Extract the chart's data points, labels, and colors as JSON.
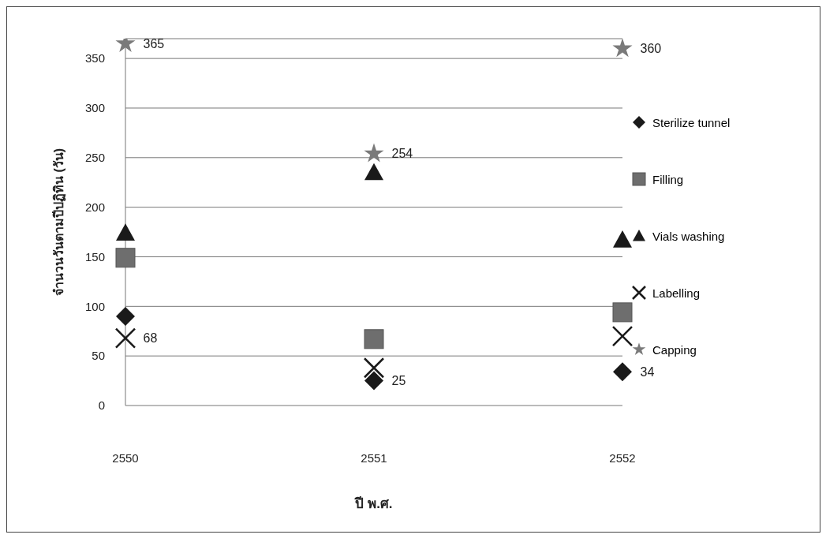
{
  "chart_data": {
    "type": "scatter",
    "categories": [
      "2550",
      "2551",
      "2552"
    ],
    "xlabel": "ปี พ.ศ.",
    "ylabel": "จำนวนวันตามปีปฏิทิน (วัน)",
    "ylim": [
      0,
      370
    ],
    "yticks": [
      0,
      50,
      100,
      150,
      200,
      250,
      300,
      350
    ],
    "grid": "y",
    "legend": "right",
    "series": [
      {
        "name": "Sterilize tunnel",
        "color": "#1a1a1a",
        "marker": "diamond",
        "values": [
          90,
          25,
          34
        ],
        "value_labels": [
          null,
          "25",
          "34"
        ]
      },
      {
        "name": "Filling",
        "color": "#6e6e6e",
        "marker": "square",
        "values": [
          149,
          67,
          94
        ]
      },
      {
        "name": "Vials washing",
        "color": "#1a1a1a",
        "marker": "triangle",
        "values": [
          174,
          235,
          167
        ]
      },
      {
        "name": "Labelling",
        "color": "#1a1a1a",
        "marker": "cross",
        "values": [
          68,
          38,
          70
        ],
        "value_labels": [
          "68",
          null,
          null
        ]
      },
      {
        "name": "Capping",
        "color": "#7a7a7a",
        "marker": "star",
        "values": [
          365,
          254,
          360
        ],
        "value_labels": [
          "365",
          "254",
          "360"
        ]
      }
    ]
  }
}
